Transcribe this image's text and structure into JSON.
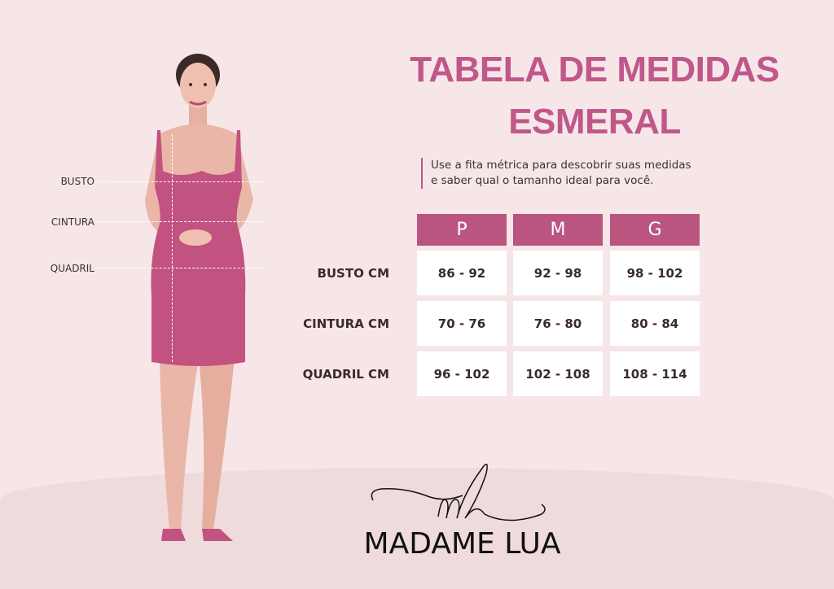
{
  "title": {
    "line1": "TABELA DE MEDIDAS",
    "line2": "ESMERAL"
  },
  "subtitle": {
    "line1": "Use a fita métrica para descobrir suas medidas",
    "line2": "e saber qual o tamanho ideal para você."
  },
  "body_labels": [
    "BUSTO",
    "CINTURA",
    "QUADRIL"
  ],
  "table": {
    "headers": [
      "P",
      "M",
      "G"
    ],
    "rows": [
      {
        "label": "BUSTO CM",
        "values": [
          "86 - 92",
          "92 - 98",
          "98 - 102"
        ]
      },
      {
        "label": "CINTURA CM",
        "values": [
          "70 - 76",
          "76 - 80",
          "80 - 84"
        ]
      },
      {
        "label": "QUADRIL CM",
        "values": [
          "96 - 102",
          "102 - 108",
          "108 - 114"
        ]
      }
    ]
  },
  "logo": {
    "monogram": "ml",
    "name": "MADAME LUA"
  },
  "colors": {
    "accent": "#c0578a",
    "header": "#b9557f",
    "background": "#f6e6e8",
    "dress": "#c2527f"
  }
}
